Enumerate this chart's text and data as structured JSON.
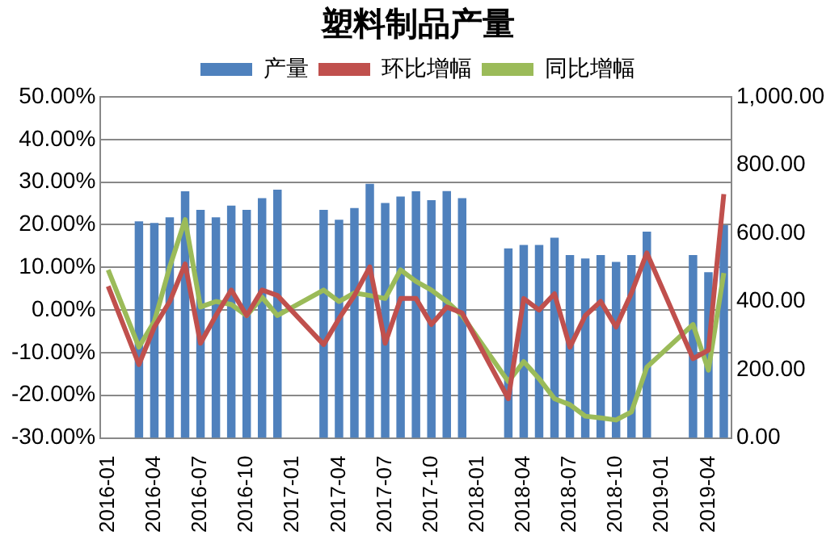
{
  "chart_data": {
    "type": "bar",
    "title": "塑料制品产量",
    "categories": [
      "2016-01",
      null,
      null,
      "2016-04",
      null,
      null,
      "2016-07",
      null,
      null,
      "2016-10",
      null,
      null,
      "2017-01",
      null,
      null,
      "2017-04",
      null,
      null,
      "2017-07",
      null,
      null,
      "2017-10",
      null,
      null,
      "2018-01",
      null,
      null,
      "2018-04",
      null,
      null,
      "2018-07",
      null,
      null,
      "2018-10",
      null,
      null,
      "2019-01",
      null,
      null,
      "2019-04",
      null
    ],
    "series": [
      {
        "name": "产量",
        "axis": "y2",
        "color": "#4f81bd",
        "values": [
          null,
          null,
          635,
          630,
          647,
          723,
          669,
          647,
          681,
          669,
          703,
          728,
          null,
          null,
          669,
          640,
          674,
          745,
          689,
          708,
          723,
          697,
          724,
          703,
          null,
          null,
          556,
          566,
          566,
          587,
          536,
          526,
          536,
          516,
          536,
          605,
          null,
          null,
          536,
          486,
          624
        ]
      },
      {
        "name": "环比增幅",
        "type": "line",
        "axis": "y",
        "color": "#c0504d",
        "values": [
          5.6,
          null,
          -12.8,
          -4.0,
          2.0,
          10.8,
          -7.8,
          -1.3,
          4.7,
          -1.3,
          4.7,
          3.4,
          null,
          null,
          -8.1,
          -2.0,
          3.4,
          10.1,
          -7.8,
          2.7,
          2.7,
          -3.4,
          0.7,
          -0.7,
          null,
          null,
          -20.8,
          2.7,
          0.0,
          3.8,
          -8.7,
          -1.3,
          2.0,
          -4.0,
          4.0,
          13.4,
          null,
          null,
          -11.4,
          -9.4,
          27.2
        ]
      },
      {
        "name": "同比增幅",
        "type": "line",
        "axis": "y",
        "color": "#9bbb59",
        "values": [
          9.4,
          null,
          -8.7,
          -2.7,
          10.1,
          21.2,
          0.7,
          2.0,
          1.3,
          -1.3,
          3.0,
          -1.3,
          null,
          null,
          4.7,
          2.0,
          4.0,
          3.4,
          2.7,
          9.4,
          6.7,
          4.7,
          2.0,
          -1.3,
          null,
          null,
          -16.8,
          -12.1,
          -16.1,
          -20.8,
          -22.2,
          -24.9,
          -25.3,
          -25.8,
          -23.9,
          -13.4,
          null,
          null,
          -3.4,
          -14.1,
          8.7
        ]
      }
    ],
    "ylim": [
      -30,
      50
    ],
    "yticks": [
      {
        "value": -30,
        "label": "-30.00%"
      },
      {
        "value": -20,
        "label": "-20.00%"
      },
      {
        "value": -10,
        "label": "-10.00%"
      },
      {
        "value": 0,
        "label": "0.00%"
      },
      {
        "value": 10,
        "label": "10.00%"
      },
      {
        "value": 20,
        "label": "20.00%"
      },
      {
        "value": 30,
        "label": "30.00%"
      },
      {
        "value": 40,
        "label": "40.00%"
      },
      {
        "value": 50,
        "label": "50.00%"
      }
    ],
    "y2lim": [
      0,
      1000
    ],
    "y2ticks": [
      {
        "value": 0,
        "label": "0.00"
      },
      {
        "value": 200,
        "label": "200.00"
      },
      {
        "value": 400,
        "label": "400.00"
      },
      {
        "value": 600,
        "label": "600.00"
      },
      {
        "value": 800,
        "label": "800.00"
      },
      {
        "value": 1000,
        "label": "1,000.00"
      }
    ],
    "grid": "y",
    "legend": "top",
    "marker": "none",
    "line_style": "solid"
  }
}
